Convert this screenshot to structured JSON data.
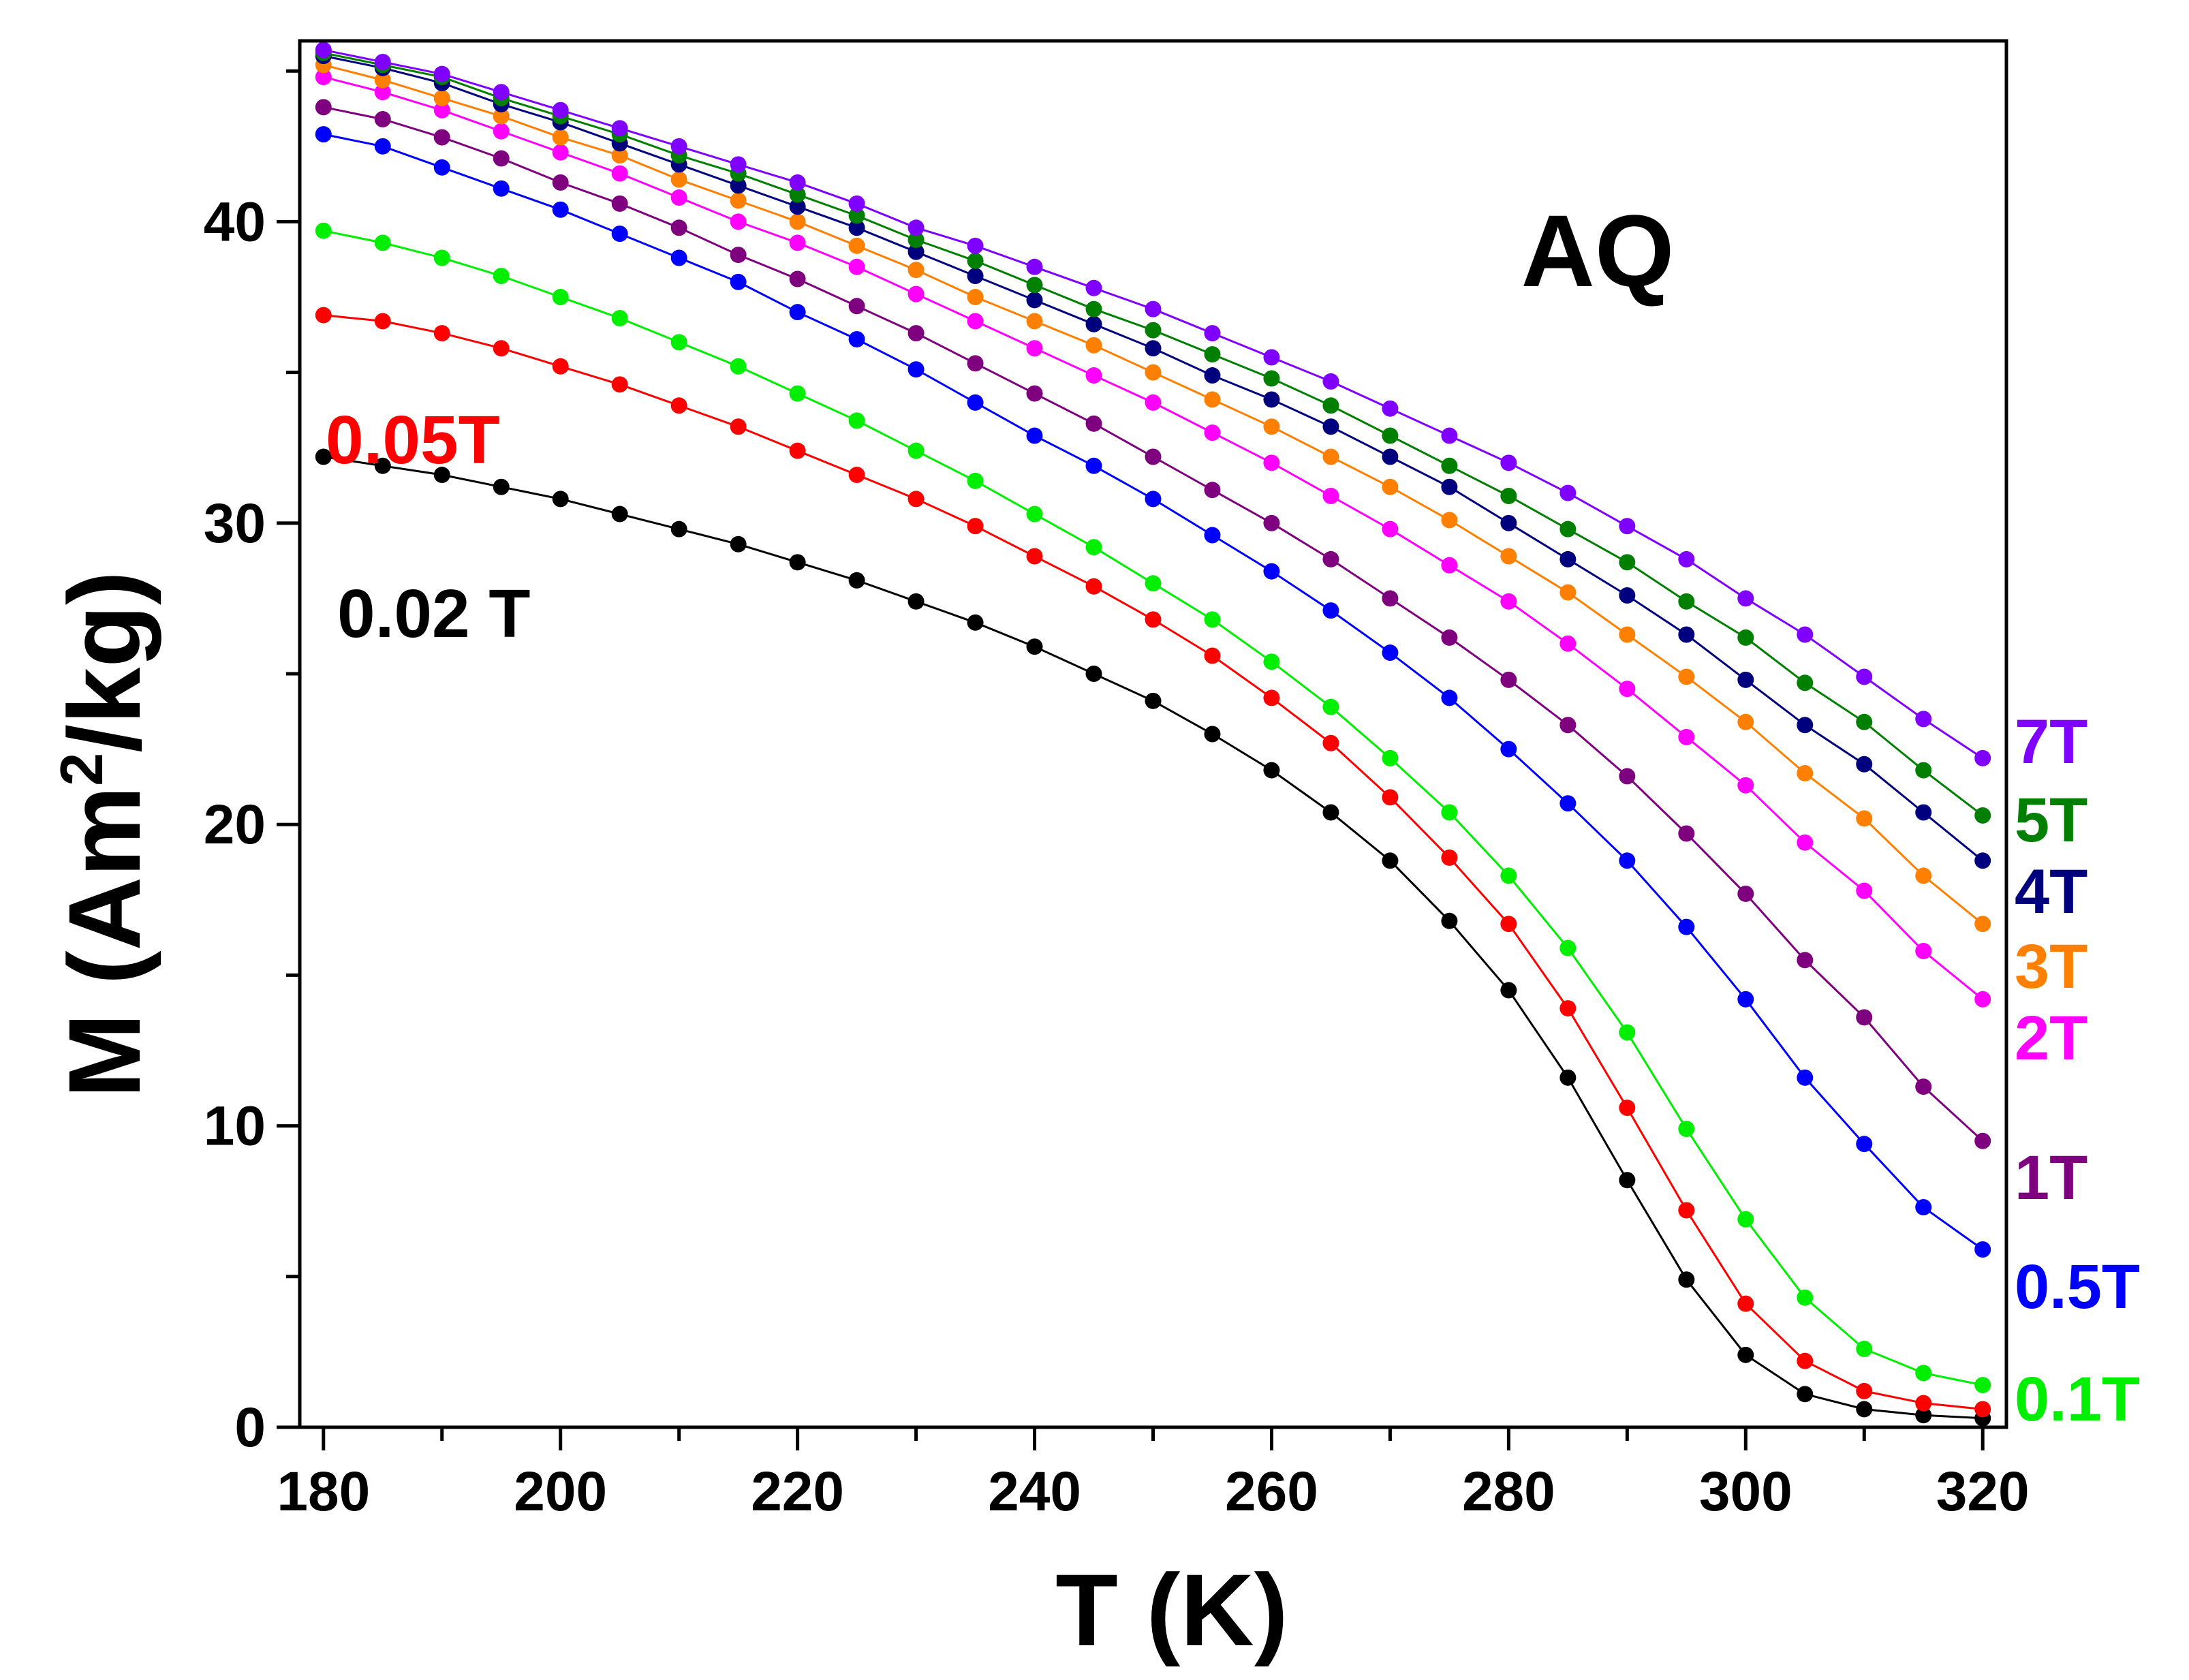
{
  "chart_data": {
    "type": "line",
    "title": "",
    "panel_label": "AQ",
    "xlabel": "T (K)",
    "ylabel_main": "M (Am",
    "ylabel_sup": "2",
    "ylabel_tail": "/kg)",
    "xlim": [
      178,
      322
    ],
    "ylim": [
      0,
      46
    ],
    "x_ticks": [
      180,
      200,
      220,
      240,
      260,
      280,
      300,
      320
    ],
    "x_tick_labels": [
      "180",
      "200",
      "220",
      "240",
      "260",
      "280",
      "300",
      "320"
    ],
    "y_ticks": [
      0,
      10,
      20,
      30,
      40
    ],
    "y_tick_labels": [
      "0",
      "10",
      "20",
      "30",
      "40"
    ],
    "x": [
      180,
      185,
      190,
      195,
      200,
      205,
      210,
      215,
      220,
      225,
      230,
      235,
      240,
      245,
      250,
      255,
      260,
      265,
      270,
      275,
      280,
      285,
      290,
      295,
      300,
      305,
      310,
      315,
      320
    ],
    "series": [
      {
        "name": "0.02 T",
        "label": "0.02 T",
        "color": "#000000",
        "label_side": "left",
        "values": [
          32.2,
          31.9,
          31.6,
          31.2,
          30.8,
          30.3,
          29.8,
          29.3,
          28.7,
          28.1,
          27.4,
          26.7,
          25.9,
          25.0,
          24.1,
          23.0,
          21.8,
          20.4,
          18.8,
          16.8,
          14.5,
          11.6,
          8.2,
          4.9,
          2.4,
          1.1,
          0.6,
          0.4,
          0.3
        ]
      },
      {
        "name": "0.05T",
        "label": "0.05T",
        "color": "#ff0000",
        "label_side": "left",
        "values": [
          36.9,
          36.7,
          36.3,
          35.8,
          35.2,
          34.6,
          33.9,
          33.2,
          32.4,
          31.6,
          30.8,
          29.9,
          28.9,
          27.9,
          26.8,
          25.6,
          24.2,
          22.7,
          20.9,
          18.9,
          16.7,
          13.9,
          10.6,
          7.2,
          4.1,
          2.2,
          1.2,
          0.8,
          0.6
        ]
      },
      {
        "name": "0.1T",
        "label": "0.1T",
        "color": "#00ee00",
        "label_side": "right",
        "values": [
          39.7,
          39.3,
          38.8,
          38.2,
          37.5,
          36.8,
          36.0,
          35.2,
          34.3,
          33.4,
          32.4,
          31.4,
          30.3,
          29.2,
          28.0,
          26.8,
          25.4,
          23.9,
          22.2,
          20.4,
          18.3,
          15.9,
          13.1,
          9.9,
          6.9,
          4.3,
          2.6,
          1.8,
          1.4
        ]
      },
      {
        "name": "0.5T",
        "label": "0.5T",
        "color": "#0000ff",
        "label_side": "right",
        "values": [
          42.9,
          42.5,
          41.8,
          41.1,
          40.4,
          39.6,
          38.8,
          38.0,
          37.0,
          36.1,
          35.1,
          34.0,
          32.9,
          31.9,
          30.8,
          29.6,
          28.4,
          27.1,
          25.7,
          24.2,
          22.5,
          20.7,
          18.8,
          16.6,
          14.2,
          11.6,
          9.4,
          7.3,
          5.9
        ]
      },
      {
        "name": "1T",
        "label": "1T",
        "color": "#7f007f",
        "label_side": "right",
        "values": [
          43.8,
          43.4,
          42.8,
          42.1,
          41.3,
          40.6,
          39.8,
          38.9,
          38.1,
          37.2,
          36.3,
          35.3,
          34.3,
          33.3,
          32.2,
          31.1,
          30.0,
          28.8,
          27.5,
          26.2,
          24.8,
          23.3,
          21.6,
          19.7,
          17.7,
          15.5,
          13.6,
          11.3,
          9.5
        ]
      },
      {
        "name": "2T",
        "label": "2T",
        "color": "#ff00ff",
        "label_side": "right",
        "values": [
          44.8,
          44.3,
          43.7,
          43.0,
          42.3,
          41.6,
          40.8,
          40.0,
          39.3,
          38.5,
          37.6,
          36.7,
          35.8,
          34.9,
          34.0,
          33.0,
          32.0,
          30.9,
          29.8,
          28.6,
          27.4,
          26.0,
          24.5,
          22.9,
          21.3,
          19.4,
          17.8,
          15.8,
          14.2
        ]
      },
      {
        "name": "3T",
        "label": "3T",
        "color": "#ff8000",
        "label_side": "right",
        "values": [
          45.2,
          44.7,
          44.1,
          43.5,
          42.8,
          42.2,
          41.4,
          40.7,
          40.0,
          39.2,
          38.4,
          37.5,
          36.7,
          35.9,
          35.0,
          34.1,
          33.2,
          32.2,
          31.2,
          30.1,
          28.9,
          27.7,
          26.3,
          24.9,
          23.4,
          21.7,
          20.2,
          18.3,
          16.7
        ]
      },
      {
        "name": "4T",
        "label": "4T",
        "color": "#00007f",
        "label_side": "right",
        "values": [
          45.5,
          45.1,
          44.6,
          43.9,
          43.3,
          42.6,
          41.9,
          41.2,
          40.5,
          39.8,
          39.0,
          38.2,
          37.4,
          36.6,
          35.8,
          34.9,
          34.1,
          33.2,
          32.2,
          31.2,
          30.0,
          28.8,
          27.6,
          26.3,
          24.8,
          23.3,
          22.0,
          20.4,
          18.8
        ]
      },
      {
        "name": "5T",
        "label": "5T",
        "color": "#007f00",
        "label_side": "right",
        "values": [
          45.6,
          45.2,
          44.8,
          44.1,
          43.5,
          42.9,
          42.2,
          41.6,
          40.9,
          40.2,
          39.4,
          38.7,
          37.9,
          37.1,
          36.4,
          35.6,
          34.8,
          33.9,
          32.9,
          31.9,
          30.9,
          29.8,
          28.7,
          27.4,
          26.2,
          24.7,
          23.4,
          21.8,
          20.3
        ]
      },
      {
        "name": "7T",
        "label": "7T",
        "color": "#8000ff",
        "label_side": "right",
        "values": [
          45.7,
          45.3,
          44.9,
          44.3,
          43.7,
          43.1,
          42.5,
          41.9,
          41.3,
          40.6,
          39.8,
          39.2,
          38.5,
          37.8,
          37.1,
          36.3,
          35.5,
          34.7,
          33.8,
          32.9,
          32.0,
          31.0,
          29.9,
          28.8,
          27.5,
          26.3,
          24.9,
          23.5,
          22.2
        ]
      }
    ]
  }
}
